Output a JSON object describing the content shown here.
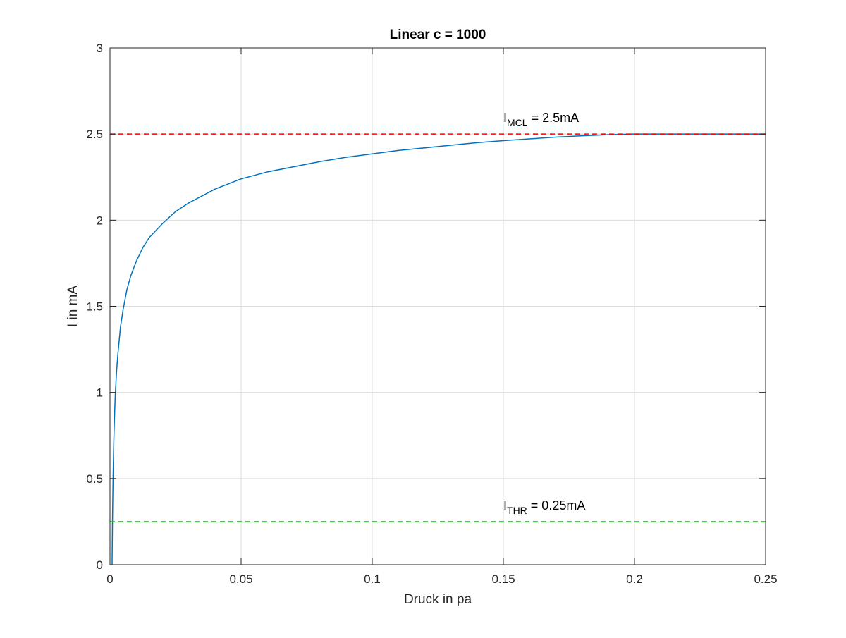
{
  "chart_data": {
    "type": "line",
    "title": "Linear c = 1000",
    "xlabel": "Druck in pa",
    "ylabel": "I in mA",
    "xlim": [
      0,
      0.25
    ],
    "ylim": [
      0,
      3
    ],
    "grid": true,
    "x_ticks": [
      0,
      0.05,
      0.1,
      0.15,
      0.2,
      0.25
    ],
    "x_tick_labels": [
      "0",
      "0.05",
      "0.1",
      "0.15",
      "0.2",
      "0.25"
    ],
    "y_ticks": [
      0,
      0.5,
      1,
      1.5,
      2,
      2.5,
      3
    ],
    "y_tick_labels": [
      "0",
      "0.5",
      "1",
      "1.5",
      "2",
      "2.5",
      "3"
    ],
    "series": [
      {
        "color": "#0072BD",
        "style": "solid",
        "x": [
          0.0008,
          0.00082,
          0.00085,
          0.0009,
          0.00095,
          0.001,
          0.0011,
          0.0012,
          0.0014,
          0.0016,
          0.002,
          0.0025,
          0.003,
          0.004,
          0.005,
          0.0065,
          0.008,
          0.01,
          0.0125,
          0.015,
          0.0175,
          0.02,
          0.025,
          0.03,
          0.035,
          0.04,
          0.05,
          0.06,
          0.07,
          0.08,
          0.09,
          0.1,
          0.11,
          0.12,
          0.13,
          0.14,
          0.15,
          0.16,
          0.17,
          0.18,
          0.19,
          0.199,
          0.21,
          0.22,
          0.23,
          0.24,
          0.25
        ],
        "y": [
          0,
          0.035,
          0.08,
          0.16,
          0.24,
          0.31,
          0.42,
          0.52,
          0.68,
          0.8,
          0.98,
          1.12,
          1.22,
          1.38,
          1.48,
          1.6,
          1.68,
          1.76,
          1.84,
          1.9,
          1.94,
          1.98,
          2.05,
          2.1,
          2.14,
          2.18,
          2.24,
          2.28,
          2.31,
          2.34,
          2.365,
          2.385,
          2.405,
          2.42,
          2.435,
          2.45,
          2.462,
          2.472,
          2.482,
          2.49,
          2.496,
          2.5,
          2.5,
          2.5,
          2.5,
          2.5,
          2.5
        ]
      },
      {
        "name": "I_MCL",
        "color": "#FF0000",
        "style": "dashed",
        "x": [
          0,
          0.25
        ],
        "y": [
          2.5,
          2.5
        ]
      },
      {
        "name": "I_THR",
        "color": "#00E000",
        "style": "dashed",
        "x": [
          0,
          0.25
        ],
        "y": [
          0.25,
          0.25
        ]
      }
    ],
    "annotations": [
      {
        "main": "I",
        "sub": "MCL",
        "rest": " = 2.5mA",
        "x": 0.15,
        "y": 2.57
      },
      {
        "main": "I",
        "sub": "THR",
        "rest": " = 0.25mA",
        "x": 0.15,
        "y": 0.32
      }
    ]
  }
}
